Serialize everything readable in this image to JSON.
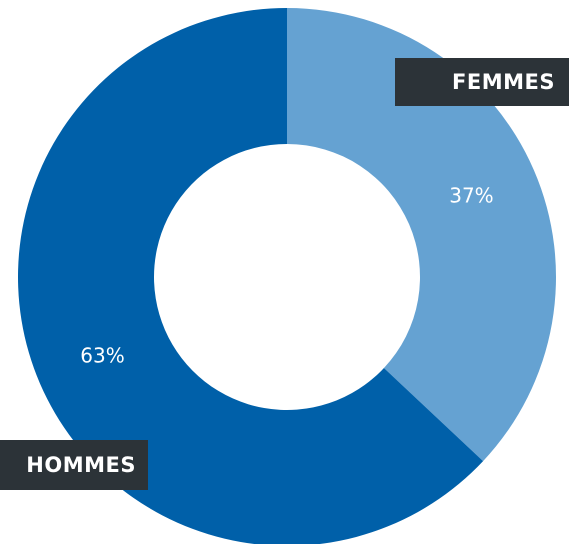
{
  "chart_data": {
    "type": "pie",
    "categories": [
      "FEMMES",
      "HOMMES"
    ],
    "values": [
      37,
      63
    ],
    "value_labels": [
      "37%",
      "63%"
    ],
    "colors": [
      "#65a2d2",
      "#0060a9"
    ],
    "donut": true
  }
}
